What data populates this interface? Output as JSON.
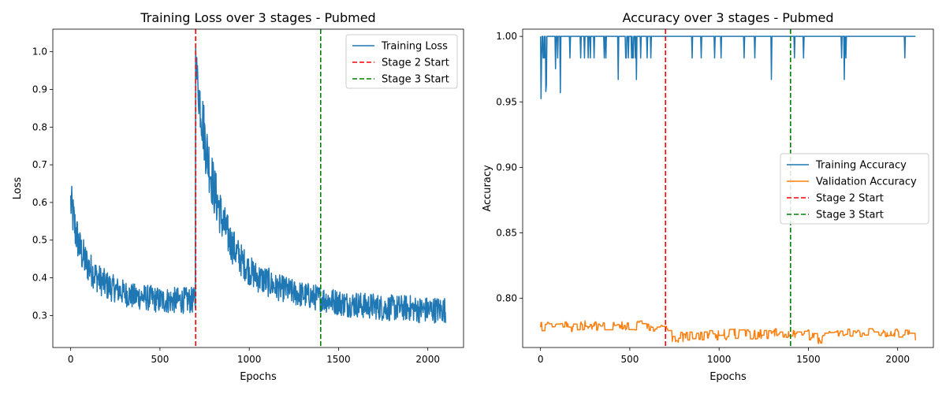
{
  "chart_data": [
    {
      "type": "line",
      "title": "Training Loss over 3 stages - Pubmed",
      "xlabel": "Epochs",
      "ylabel": "Loss",
      "xlim": [
        -100,
        2200
      ],
      "ylim": [
        0.215,
        1.06
      ],
      "xticks": [
        0,
        500,
        1000,
        1500,
        2000
      ],
      "yticks": [
        0.3,
        0.4,
        0.5,
        0.6,
        0.7,
        0.8,
        0.9,
        1.0
      ],
      "ytick_labels": [
        "0.3",
        "0.4",
        "0.5",
        "0.6",
        "0.7",
        "0.8",
        "0.9",
        "1.0"
      ],
      "grid": false,
      "legend_position": "top-right",
      "series": [
        {
          "name": "Training Loss",
          "color": "#1f77b4",
          "x": [
            0,
            25,
            50,
            75,
            100,
            150,
            200,
            250,
            300,
            350,
            400,
            450,
            500,
            550,
            600,
            650,
            699,
            700,
            710,
            730,
            760,
            800,
            850,
            900,
            950,
            1000,
            1050,
            1100,
            1150,
            1200,
            1250,
            1300,
            1350,
            1400,
            1450,
            1500,
            1550,
            1600,
            1650,
            1700,
            1750,
            1800,
            1850,
            1900,
            1950,
            2000,
            2050,
            2100
          ],
          "y": [
            0.6,
            0.53,
            0.48,
            0.45,
            0.43,
            0.4,
            0.38,
            0.37,
            0.36,
            0.35,
            0.35,
            0.345,
            0.34,
            0.34,
            0.34,
            0.34,
            0.34,
            1.0,
            0.92,
            0.85,
            0.74,
            0.64,
            0.55,
            0.49,
            0.45,
            0.42,
            0.4,
            0.39,
            0.375,
            0.37,
            0.36,
            0.355,
            0.35,
            0.345,
            0.34,
            0.335,
            0.33,
            0.33,
            0.325,
            0.325,
            0.32,
            0.32,
            0.32,
            0.32,
            0.315,
            0.315,
            0.315,
            0.315
          ],
          "spread": [
            0.06,
            0.06,
            0.05,
            0.05,
            0.045,
            0.04,
            0.04,
            0.035,
            0.035,
            0.035,
            0.035,
            0.035,
            0.035,
            0.035,
            0.035,
            0.035,
            0.035,
            0.03,
            0.06,
            0.08,
            0.08,
            0.07,
            0.06,
            0.05,
            0.045,
            0.04,
            0.04,
            0.04,
            0.035,
            0.035,
            0.035,
            0.035,
            0.035,
            0.035,
            0.035,
            0.035,
            0.035,
            0.035,
            0.035,
            0.035,
            0.035,
            0.035,
            0.035,
            0.035,
            0.035,
            0.035,
            0.035,
            0.035
          ]
        },
        {
          "name": "Stage 2 Start",
          "type": "vline",
          "x": 700,
          "color": "#ff0000",
          "dashed": true
        },
        {
          "name": "Stage 3 Start",
          "type": "vline",
          "x": 1400,
          "color": "#008000",
          "dashed": true
        }
      ]
    },
    {
      "type": "line",
      "title": "Accuracy over 3 stages - Pubmed",
      "xlabel": "Epochs",
      "ylabel": "Accuracy",
      "xlim": [
        -100,
        2200
      ],
      "ylim": [
        0.7625,
        1.0055
      ],
      "xticks": [
        0,
        500,
        1000,
        1500,
        2000
      ],
      "yticks": [
        0.8,
        0.85,
        0.9,
        0.95,
        1.0
      ],
      "ytick_labels": [
        "0.80",
        "0.85",
        "0.90",
        "0.95",
        "1.00"
      ],
      "grid": false,
      "legend_position": "center-right",
      "series": [
        {
          "name": "Training Accuracy",
          "color": "#1f77b4",
          "x": [
            0,
            50,
            100,
            150,
            200,
            300,
            400,
            500,
            600,
            700,
            800,
            900,
            1000,
            1100,
            1200,
            1300,
            1400,
            1500,
            1600,
            1700,
            1800,
            1900,
            2000,
            2100
          ],
          "y": [
            0.967,
            0.983,
            0.99,
            0.992,
            0.994,
            0.995,
            0.996,
            0.996,
            0.996,
            0.996,
            0.997,
            0.997,
            0.997,
            0.998,
            0.998,
            0.998,
            0.998,
            0.999,
            0.999,
            0.999,
            0.999,
            0.999,
            0.999,
            0.999
          ]
        },
        {
          "name": "Validation Accuracy",
          "color": "#ff7f0e",
          "x": [
            0,
            50,
            100,
            150,
            200,
            300,
            400,
            500,
            600,
            700,
            750,
            800,
            900,
            1000,
            1100,
            1200,
            1300,
            1400,
            1500,
            1550,
            1600,
            1700,
            1800,
            1900,
            2000,
            2050,
            2100
          ],
          "y": [
            0.778,
            0.781,
            0.782,
            0.778,
            0.779,
            0.779,
            0.779,
            0.779,
            0.779,
            0.778,
            0.769,
            0.771,
            0.772,
            0.772,
            0.773,
            0.772,
            0.773,
            0.772,
            0.772,
            0.768,
            0.771,
            0.773,
            0.774,
            0.772,
            0.773,
            0.775,
            0.772
          ]
        },
        {
          "name": "Stage 2 Start",
          "type": "vline",
          "x": 700,
          "color": "#ff0000",
          "dashed": true
        },
        {
          "name": "Stage 3 Start",
          "type": "vline",
          "x": 1400,
          "color": "#008000",
          "dashed": true
        }
      ]
    }
  ]
}
